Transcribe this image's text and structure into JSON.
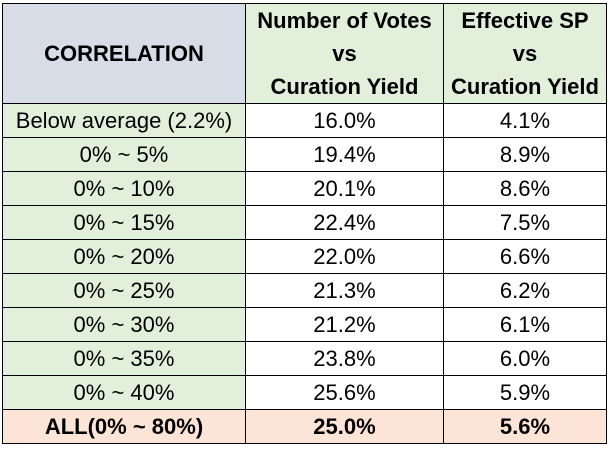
{
  "colors": {
    "header_first_bg": "#d8dce6",
    "header_bg": "#e2efda",
    "label_bg": "#e2efda",
    "value_bg": "#ffffff",
    "total_bg": "#fce4d6",
    "border": "#000000"
  },
  "table": {
    "header": {
      "col1": "CORRELATION",
      "col2": [
        "Number of Votes",
        "vs",
        "Curation Yield"
      ],
      "col3": [
        "Effective SP",
        "vs",
        "Curation Yield"
      ]
    },
    "rows": [
      {
        "label": "Below average (2.2%)",
        "votes": "16.0%",
        "sp": "4.1%"
      },
      {
        "label": "0% ~ 5%",
        "votes": "19.4%",
        "sp": "8.9%"
      },
      {
        "label": "0% ~ 10%",
        "votes": "20.1%",
        "sp": "8.6%"
      },
      {
        "label": "0% ~ 15%",
        "votes": "22.4%",
        "sp": "7.5%"
      },
      {
        "label": "0% ~ 20%",
        "votes": "22.0%",
        "sp": "6.6%"
      },
      {
        "label": "0% ~ 25%",
        "votes": "21.3%",
        "sp": "6.2%"
      },
      {
        "label": "0% ~ 30%",
        "votes": "21.2%",
        "sp": "6.1%"
      },
      {
        "label": "0% ~ 35%",
        "votes": "23.8%",
        "sp": "6.0%"
      },
      {
        "label": "0% ~ 40%",
        "votes": "25.6%",
        "sp": "5.9%"
      }
    ],
    "total": {
      "label": "ALL(0% ~ 80%)",
      "votes": "25.0%",
      "sp": "5.6%"
    }
  }
}
